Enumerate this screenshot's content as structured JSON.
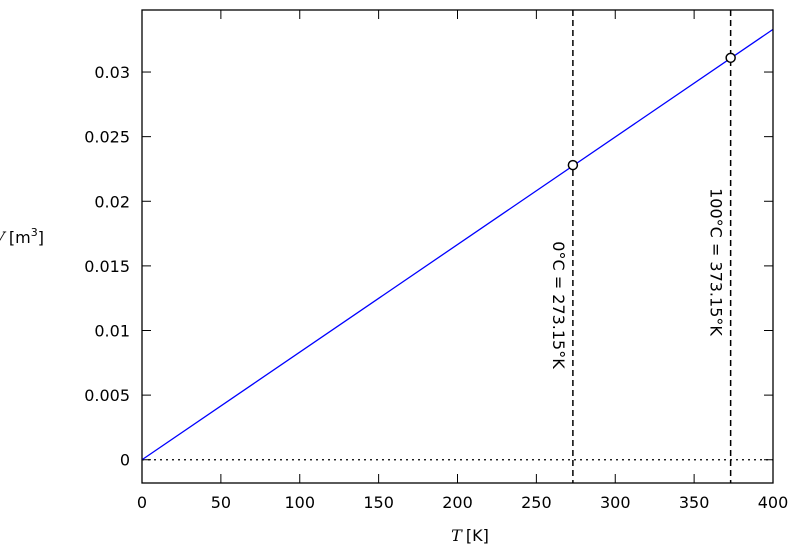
{
  "chart_data": {
    "type": "line",
    "xlabel": {
      "symbol": "T",
      "unit": "[K]"
    },
    "ylabel": {
      "symbol": "V",
      "unit": "[m",
      "power": "3",
      "close": "]"
    },
    "series": [
      {
        "color": "#0000ff",
        "x": [
          0,
          400
        ],
        "values": [
          0,
          0.0333
        ]
      }
    ],
    "points": {
      "x": [
        273.15,
        373.15
      ],
      "values": [
        0.0228,
        0.0311
      ]
    },
    "vlines": [
      {
        "x": 273.15,
        "label": "0°C = 273.15°K"
      },
      {
        "x": 373.15,
        "label": "100°C = 373.15°K"
      }
    ],
    "zero_line": true,
    "xlim": [
      0,
      400
    ],
    "xticks": [
      0,
      50,
      100,
      150,
      200,
      250,
      300,
      350,
      400
    ],
    "ylim": [
      -0.0018,
      0.0348
    ],
    "yticks": [
      0,
      0.005,
      0.01,
      0.015,
      0.02,
      0.025,
      0.03
    ]
  }
}
